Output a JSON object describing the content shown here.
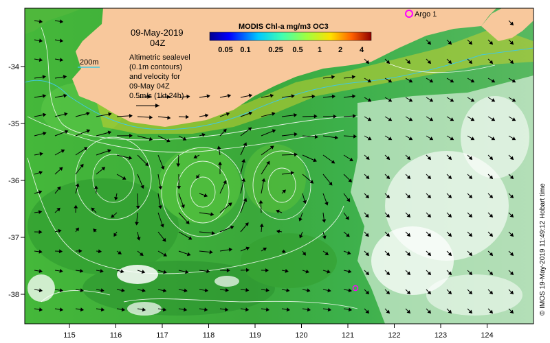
{
  "map": {
    "date": "09-May-2019",
    "time": "04Z",
    "scale_label": "200m",
    "legend_lines": [
      "Altimetric sealevel",
      "(0.1m contours)",
      "and velocity for",
      "09-May 04Z",
      "0.5m/s (1kt 24h)"
    ],
    "colorbar_title": "MODIS Chl-a mg/m3 OC3",
    "colorbar_ticks": [
      "0.05",
      "0.1",
      "0.25",
      "0.5",
      "1",
      "2",
      "4"
    ],
    "argo_label": "Argo 1",
    "credit": "© IMOS 19-May-2019 11:49:12 Hobart time",
    "lon_ticks": [
      "115",
      "116",
      "117",
      "118",
      "119",
      "120",
      "121",
      "122",
      "123",
      "124"
    ],
    "lat_ticks": [
      "-34",
      "-35",
      "-36",
      "-37",
      "-38"
    ],
    "colors": {
      "land": "#f8c89c",
      "ocean_green": "#3fbf3a",
      "ocean_dark": "#1f9a2a",
      "coast_yellow": "#d8d020",
      "contour": "#ffffff",
      "argo": "#ff00ff",
      "isobath": "#40c8e0"
    }
  }
}
